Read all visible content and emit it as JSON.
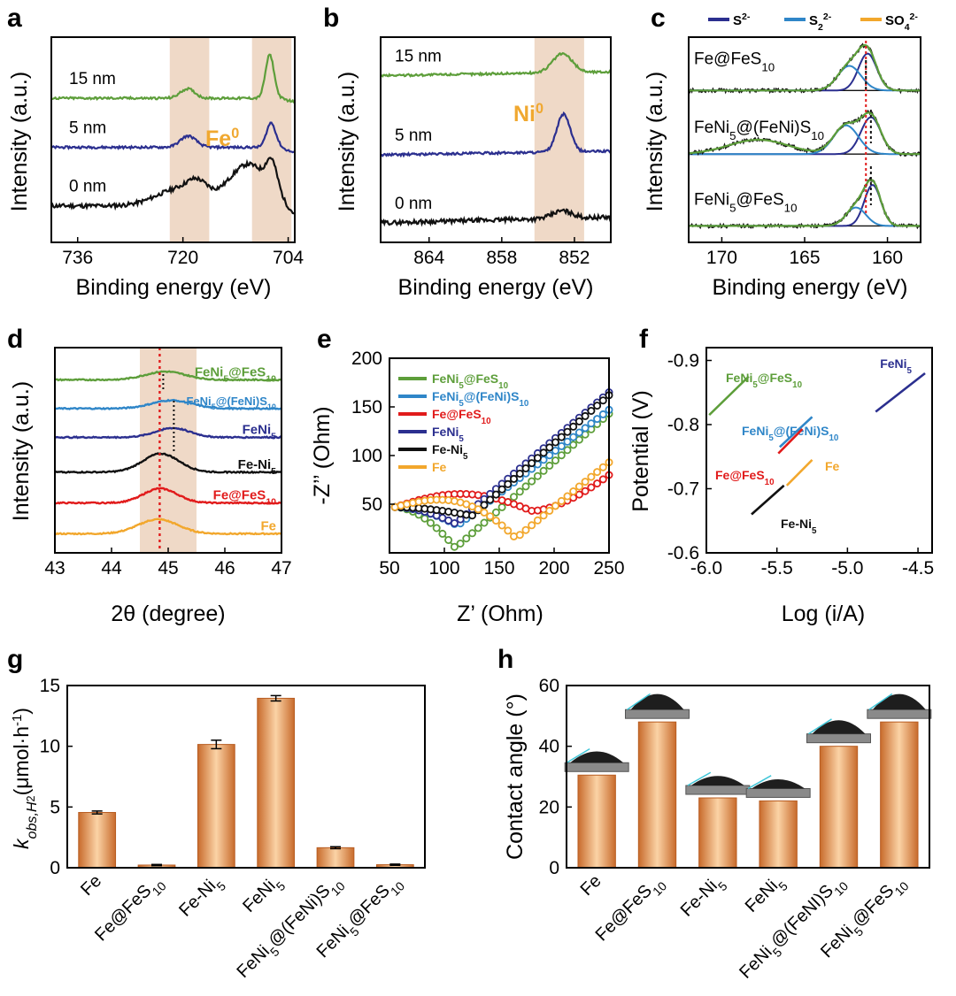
{
  "colors": {
    "black": "#111111",
    "navy": "#2b2f8f",
    "green": "#5d9e3a",
    "blue": "#2f86c8",
    "red": "#e11b1b",
    "orange": "#f2a72c",
    "highlight": "#efd9c7",
    "label_orange": "#f0a830",
    "bar_dark": "#c86b2c",
    "bar_light": "#fbd3a6"
  },
  "chart_data": [
    {
      "panel": "a",
      "type": "line",
      "xlabel": "Binding energy (eV)",
      "ylabel": "Intensity (a.u.)",
      "xlim": [
        740,
        703
      ],
      "xticks": [
        736,
        720,
        704
      ],
      "highlight_bands": [
        [
          716,
          722
        ],
        [
          703.5,
          709.5
        ]
      ],
      "band_label": "Fe",
      "band_label_sup": "0",
      "series": [
        {
          "name": "0 nm",
          "color": "black",
          "baseline": 0.15,
          "peaks": [
            [
              720.5,
              0.09,
              3.5
            ],
            [
              717.8,
              0.07,
              1.5
            ],
            [
              710.0,
              0.22,
              3.0
            ],
            [
              706.5,
              0.14,
              0.8
            ]
          ],
          "tail": -0.06
        },
        {
          "name": "5 nm",
          "color": "navy",
          "baseline": 0.46,
          "peaks": [
            [
              719.2,
              0.06,
              1.2
            ],
            [
              706.6,
              0.13,
              0.7
            ]
          ],
          "tail": -0.03
        },
        {
          "name": "15 nm",
          "color": "green",
          "baseline": 0.72,
          "peaks": [
            [
              719.3,
              0.05,
              1.1
            ],
            [
              706.8,
              0.23,
              0.65
            ]
          ],
          "tail": -0.02
        }
      ]
    },
    {
      "panel": "b",
      "type": "line",
      "xlabel": "Binding energy (eV)",
      "ylabel": "Intensity (a.u.)",
      "xlim": [
        868,
        849
      ],
      "xticks": [
        864,
        858,
        852
      ],
      "highlight_bands": [
        [
          851.2,
          855.3
        ]
      ],
      "band_label": "Ni",
      "band_label_sup": "0",
      "series": [
        {
          "name": "0 nm",
          "color": "black",
          "baseline": 0.06,
          "peaks": [
            [
              853.0,
              0.04,
              0.8
            ]
          ],
          "slope": 0.03
        },
        {
          "name": "5 nm",
          "color": "navy",
          "baseline": 0.42,
          "peaks": [
            [
              852.9,
              0.2,
              0.55
            ]
          ],
          "slope": 0.02
        },
        {
          "name": "15 nm",
          "color": "green",
          "baseline": 0.84,
          "peaks": [
            [
              853.0,
              0.1,
              0.8
            ]
          ],
          "slope": 0.02
        }
      ]
    },
    {
      "panel": "c",
      "type": "line",
      "xlabel": "Binding energy (eV)",
      "ylabel": "Intensity (a.u.)",
      "xlim": [
        172,
        158
      ],
      "xticks": [
        170,
        165,
        160
      ],
      "legend": [
        {
          "label": "S",
          "sup": "2-",
          "sub": "",
          "color": "navy"
        },
        {
          "label": "S",
          "sup": "2-",
          "sub": "2",
          "color": "blue"
        },
        {
          "label": "SO",
          "sup": "2-",
          "sub": "4",
          "color": "orange"
        }
      ],
      "samples": [
        {
          "name_parts": [
            "Fe@FeS",
            "10"
          ],
          "baseline": 0.74,
          "s2": [
            161.2,
            0.18,
            0.55
          ],
          "s22": [
            162.3,
            0.12,
            0.7
          ],
          "so4": null
        },
        {
          "name_parts": [
            "FeNi",
            "5",
            "@(FeNi)S",
            "10"
          ],
          "baseline": 0.43,
          "s2": [
            161.0,
            0.18,
            0.6
          ],
          "s22": [
            162.5,
            0.14,
            0.75
          ],
          "so4": [
            167.8,
            0.07,
            1.8
          ]
        },
        {
          "name_parts": [
            "FeNi",
            "5",
            "@FeS",
            "10"
          ],
          "baseline": 0.08,
          "s2": [
            160.9,
            0.2,
            0.5
          ],
          "s22": [
            161.9,
            0.09,
            0.6
          ],
          "so4": null
        }
      ],
      "ref_line_red": 161.3,
      "ref_line_black": 161.0
    },
    {
      "panel": "d",
      "type": "line",
      "xlabel": "2θ (degree)",
      "ylabel": "Intensity (a.u.)",
      "xlim": [
        43,
        47
      ],
      "xticks": [
        43,
        44,
        45,
        46,
        47
      ],
      "highlight_band": [
        44.5,
        45.5
      ],
      "red_line": 44.85,
      "black_line": 45.1,
      "series": [
        {
          "name_parts": [
            "Fe",
            ""
          ],
          "color": "orange",
          "baseline": 0.05,
          "peak": [
            44.82,
            0.07,
            0.35
          ]
        },
        {
          "name_parts": [
            "Fe@FeS",
            "10"
          ],
          "color": "red",
          "baseline": 0.2,
          "peak": [
            44.86,
            0.07,
            0.3
          ]
        },
        {
          "name_parts": [
            "Fe-Ni",
            "5"
          ],
          "color": "black",
          "baseline": 0.35,
          "peak": [
            44.87,
            0.09,
            0.32
          ]
        },
        {
          "name_parts": [
            "FeNi",
            "5"
          ],
          "color": "navy",
          "baseline": 0.52,
          "peak": [
            45.08,
            0.045,
            0.3
          ]
        },
        {
          "name_parts": [
            "FeNi",
            "5",
            "@(FeNi)S",
            "10"
          ],
          "color": "blue",
          "baseline": 0.66,
          "peak": [
            45.06,
            0.04,
            0.35
          ]
        },
        {
          "name_parts": [
            "FeNi",
            "5",
            "@FeS",
            "10"
          ],
          "color": "green",
          "baseline": 0.8,
          "peak": [
            44.95,
            0.04,
            0.35
          ]
        }
      ]
    },
    {
      "panel": "e",
      "type": "scatter",
      "xlabel": "Z’ (Ohm)",
      "ylabel": "-Z’’ (Ohm)",
      "xlim": [
        50,
        250
      ],
      "ylim": [
        0,
        200
      ],
      "xticks": [
        50,
        100,
        150,
        200,
        250
      ],
      "yticks": [
        50,
        100,
        150,
        200
      ],
      "series": [
        {
          "name_parts": [
            "FeNi",
            "5",
            "@FeS",
            "10"
          ],
          "color": "green",
          "min_x": 110,
          "min_y": 5,
          "start_y": 47,
          "end_y": 143
        },
        {
          "name_parts": [
            "FeNi",
            "5",
            "@(FeNi)S",
            "10"
          ],
          "color": "blue",
          "min_x": 112,
          "min_y": 28,
          "start_y": 47,
          "end_y": 147
        },
        {
          "name_parts": [
            "Fe@FeS",
            "10"
          ],
          "color": "red",
          "min_x": 180,
          "min_y": 43,
          "start_y": 47,
          "end_y": 80
        },
        {
          "name_parts": [
            "FeNi",
            "5"
          ],
          "color": "navy",
          "min_x": 110,
          "min_y": 30,
          "start_y": 47,
          "end_y": 165
        },
        {
          "name_parts": [
            "Fe-Ni",
            "5"
          ],
          "color": "black",
          "min_x": 125,
          "min_y": 38,
          "start_y": 47,
          "end_y": 162
        },
        {
          "name_parts": [
            "Fe",
            ""
          ],
          "color": "orange",
          "min_x": 165,
          "min_y": 15,
          "start_y": 47,
          "end_y": 93
        }
      ]
    },
    {
      "panel": "f",
      "type": "line",
      "xlabel": "Log (i/A)",
      "ylabel": "Potential (V)",
      "xlim": [
        -6.0,
        -4.4
      ],
      "ylim": [
        -0.6,
        -0.92
      ],
      "xticks": [
        -6.0,
        -5.5,
        -5.0,
        -4.5
      ],
      "yticks": [
        -0.6,
        -0.7,
        -0.8,
        -0.9
      ],
      "series": [
        {
          "name_parts": [
            "FeNi",
            "5",
            "@FeS",
            "10"
          ],
          "color": "green",
          "points": [
            [
              -5.98,
              -0.815
            ],
            [
              -5.7,
              -0.875
            ]
          ]
        },
        {
          "name_parts": [
            "FeNi",
            "5",
            "@(FeNi)S",
            "10"
          ],
          "color": "blue",
          "points": [
            [
              -5.48,
              -0.765
            ],
            [
              -5.25,
              -0.812
            ]
          ]
        },
        {
          "name_parts": [
            "FeNi",
            "5"
          ],
          "color": "navy",
          "points": [
            [
              -4.8,
              -0.82
            ],
            [
              -4.45,
              -0.88
            ]
          ]
        },
        {
          "name_parts": [
            "Fe@FeS",
            "10"
          ],
          "color": "red",
          "points": [
            [
              -5.49,
              -0.755
            ],
            [
              -5.32,
              -0.793
            ]
          ]
        },
        {
          "name_parts": [
            "Fe",
            ""
          ],
          "color": "orange",
          "points": [
            [
              -5.43,
              -0.705
            ],
            [
              -5.25,
              -0.745
            ]
          ]
        },
        {
          "name_parts": [
            "Fe-Ni",
            "5"
          ],
          "color": "black",
          "points": [
            [
              -5.68,
              -0.66
            ],
            [
              -5.45,
              -0.705
            ]
          ]
        }
      ]
    },
    {
      "panel": "g",
      "type": "bar",
      "ylabel": "k_obs,H2 (μmol·h⁻¹)",
      "ylim": [
        0,
        15
      ],
      "yticks": [
        0,
        5,
        10,
        15
      ],
      "categories": [
        {
          "name_parts": [
            "Fe",
            ""
          ]
        },
        {
          "name_parts": [
            "Fe@FeS",
            "10"
          ]
        },
        {
          "name_parts": [
            "Fe-Ni",
            "5"
          ]
        },
        {
          "name_parts": [
            "FeNi",
            "5"
          ]
        },
        {
          "name_parts": [
            "FeNi",
            "5",
            "@(FeNi)S",
            "10"
          ]
        },
        {
          "name_parts": [
            "FeNi",
            "5",
            "@FeS",
            "10"
          ]
        }
      ],
      "values": [
        4.55,
        0.22,
        10.15,
        13.95,
        1.65,
        0.25
      ],
      "errors": [
        0.12,
        0.05,
        0.35,
        0.22,
        0.08,
        0.05
      ]
    },
    {
      "panel": "h",
      "type": "bar",
      "ylabel": "Contact angle (°)",
      "ylim": [
        0,
        60
      ],
      "yticks": [
        0,
        20,
        40,
        60
      ],
      "categories": [
        {
          "name_parts": [
            "Fe",
            ""
          ]
        },
        {
          "name_parts": [
            "Fe@FeS",
            "10"
          ]
        },
        {
          "name_parts": [
            "Fe-Ni",
            "5"
          ]
        },
        {
          "name_parts": [
            "FeNi",
            "5"
          ]
        },
        {
          "name_parts": [
            "FeNi",
            "5",
            "@(FeNI)S",
            "10"
          ]
        },
        {
          "name_parts": [
            "FeNi",
            "5",
            "@FeS",
            "10"
          ]
        }
      ],
      "values": [
        30.5,
        48,
        23,
        22,
        40,
        48
      ]
    }
  ],
  "labels": {
    "panels": [
      "a",
      "b",
      "c",
      "d",
      "e",
      "f",
      "g",
      "h"
    ]
  }
}
